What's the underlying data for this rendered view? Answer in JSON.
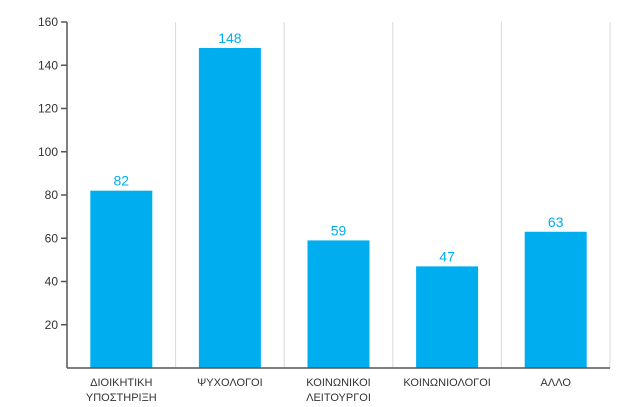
{
  "chart_data": {
    "type": "bar",
    "title": "",
    "xlabel": "",
    "ylabel": "",
    "categories": [
      [
        "ΔΙΟΙΚΗΤΙΚΗ",
        "ΥΠΟΣΤΗΡΙΞΗ"
      ],
      [
        "ΨΥΧΟΛΟΓΟΙ"
      ],
      [
        "ΚΟΙΝΩΝΙΚΟΙ",
        "ΛΕΙΤΟΥΡΓΟΙ"
      ],
      [
        "ΚΟΙΝΩΝΙΟΛΟΓΟΙ"
      ],
      [
        "ΑΛΛΟ"
      ]
    ],
    "values": [
      82,
      148,
      59,
      47,
      63
    ],
    "data_labels": [
      "82",
      "148",
      "59",
      "47",
      "63"
    ],
    "ylim": [
      0,
      160
    ],
    "yticks": [
      20,
      40,
      60,
      80,
      100,
      120,
      140,
      160
    ],
    "grid": "vertical",
    "legend": "none",
    "colors": {
      "bar": "#00aeef",
      "data_label": "#00aeef",
      "axis": "#555555",
      "grid": "#d8d8d8"
    }
  }
}
